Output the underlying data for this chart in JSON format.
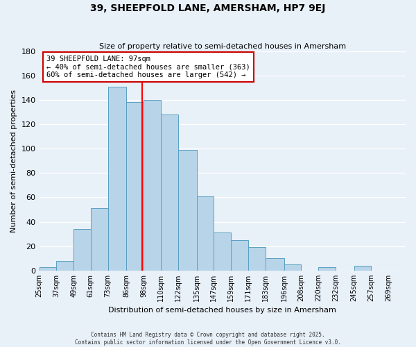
{
  "title": "39, SHEEPFOLD LANE, AMERSHAM, HP7 9EJ",
  "subtitle": "Size of property relative to semi-detached houses in Amersham",
  "xlabel": "Distribution of semi-detached houses by size in Amersham",
  "ylabel": "Number of semi-detached properties",
  "bin_labels": [
    "25sqm",
    "37sqm",
    "49sqm",
    "61sqm",
    "73sqm",
    "86sqm",
    "98sqm",
    "110sqm",
    "122sqm",
    "135sqm",
    "147sqm",
    "159sqm",
    "171sqm",
    "183sqm",
    "196sqm",
    "208sqm",
    "220sqm",
    "232sqm",
    "245sqm",
    "257sqm",
    "269sqm"
  ],
  "bin_edges": [
    25,
    37,
    49,
    61,
    73,
    86,
    98,
    110,
    122,
    135,
    147,
    159,
    171,
    183,
    196,
    208,
    220,
    232,
    245,
    257,
    269
  ],
  "counts": [
    3,
    8,
    34,
    51,
    151,
    138,
    140,
    128,
    99,
    61,
    31,
    25,
    19,
    10,
    5,
    0,
    3,
    0,
    4,
    0,
    0
  ],
  "bar_color": "#b8d4e8",
  "bar_edge_color": "#5a9fc2",
  "property_size": 97,
  "vline_color": "red",
  "annotation_line1": "39 SHEEPFOLD LANE: 97sqm",
  "annotation_line2": "← 40% of semi-detached houses are smaller (363)",
  "annotation_line3": "60% of semi-detached houses are larger (542) →",
  "annotation_box_color": "white",
  "annotation_box_edge": "#cc0000",
  "ylim": [
    0,
    180
  ],
  "yticks": [
    0,
    20,
    40,
    60,
    80,
    100,
    120,
    140,
    160,
    180
  ],
  "bg_color": "#e8f0f8",
  "grid_color": "white",
  "footer_line1": "Contains HM Land Registry data © Crown copyright and database right 2025.",
  "footer_line2": "Contains public sector information licensed under the Open Government Licence v3.0."
}
